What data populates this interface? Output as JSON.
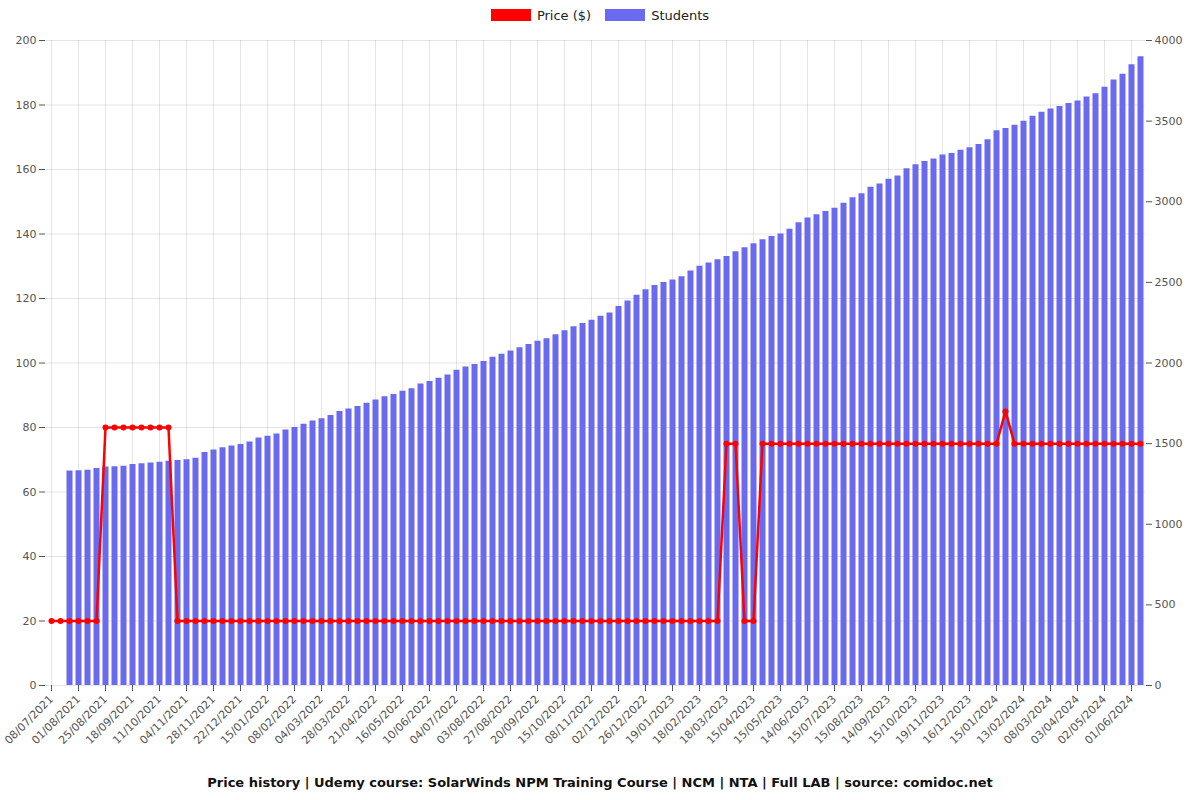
{
  "chart_data": {
    "type": "bar",
    "title": "Price history | Udemy course: SolarWinds NPM Training Course | NCM | NTA | Full LAB | source: comidoc.net",
    "categories": [
      "08/07/2021",
      null,
      null,
      "01/08/2021",
      null,
      null,
      "25/08/2021",
      null,
      null,
      "18/09/2021",
      null,
      null,
      "11/10/2021",
      null,
      null,
      "04/11/2021",
      null,
      null,
      "28/11/2021",
      null,
      null,
      "22/12/2021",
      null,
      null,
      "15/01/2022",
      null,
      null,
      "08/02/2022",
      null,
      null,
      "04/03/2022",
      null,
      null,
      "28/03/2022",
      null,
      null,
      "21/04/2022",
      null,
      null,
      "16/05/2022",
      null,
      null,
      "10/06/2022",
      null,
      null,
      "04/07/2022",
      null,
      null,
      "03/08/2022",
      null,
      null,
      "27/08/2022",
      null,
      null,
      "20/09/2022",
      null,
      null,
      "15/10/2022",
      null,
      null,
      "08/11/2022",
      null,
      null,
      "02/12/2022",
      null,
      null,
      "26/12/2022",
      null,
      null,
      "19/01/2023",
      null,
      null,
      "18/02/2023",
      null,
      null,
      "18/03/2023",
      null,
      null,
      "15/04/2023",
      null,
      null,
      "15/05/2023",
      null,
      null,
      "14/06/2023",
      null,
      null,
      "15/07/2023",
      null,
      null,
      "15/08/2023",
      null,
      null,
      "14/09/2023",
      null,
      null,
      "15/10/2023",
      null,
      null,
      "19/11/2023",
      null,
      null,
      "16/12/2023",
      null,
      null,
      "15/01/2024",
      null,
      null,
      "13/02/2024",
      null,
      null,
      "08/03/2024",
      null,
      null,
      "03/04/2024",
      null,
      null,
      "02/05/2024",
      null,
      null,
      "01/06/2024",
      null
    ],
    "series": [
      {
        "name": "Price ($)",
        "type": "line",
        "marker": "circle",
        "color": "#ff0000",
        "values": [
          20,
          20,
          20,
          20,
          20,
          20,
          80,
          80,
          80,
          80,
          80,
          80,
          80,
          80,
          20,
          20,
          20,
          20,
          20,
          20,
          20,
          20,
          20,
          20,
          20,
          20,
          20,
          20,
          20,
          20,
          20,
          20,
          20,
          20,
          20,
          20,
          20,
          20,
          20,
          20,
          20,
          20,
          20,
          20,
          20,
          20,
          20,
          20,
          20,
          20,
          20,
          20,
          20,
          20,
          20,
          20,
          20,
          20,
          20,
          20,
          20,
          20,
          20,
          20,
          20,
          20,
          20,
          20,
          20,
          20,
          20,
          20,
          20,
          20,
          20,
          75,
          75,
          20,
          20,
          75,
          75,
          75,
          75,
          75,
          75,
          75,
          75,
          75,
          75,
          75,
          75,
          75,
          75,
          75,
          75,
          75,
          75,
          75,
          75,
          75,
          75,
          75,
          75,
          75,
          75,
          75,
          85,
          75,
          75,
          75,
          75,
          75,
          75,
          75,
          75,
          75,
          75,
          75,
          75,
          75,
          75,
          75
        ]
      },
      {
        "name": "Students",
        "type": "bar",
        "axis": "y2",
        "color": "#6a6af0",
        "values": [
          0,
          0,
          1330,
          1332,
          1335,
          1345,
          1355,
          1357,
          1360,
          1370,
          1375,
          1380,
          1385,
          1390,
          1395,
          1400,
          1410,
          1445,
          1460,
          1475,
          1485,
          1495,
          1510,
          1535,
          1545,
          1560,
          1585,
          1600,
          1620,
          1640,
          1655,
          1675,
          1700,
          1715,
          1730,
          1750,
          1770,
          1790,
          1805,
          1825,
          1840,
          1870,
          1885,
          1905,
          1925,
          1955,
          1975,
          1990,
          2010,
          2035,
          2055,
          2075,
          2095,
          2115,
          2135,
          2150,
          2175,
          2200,
          2225,
          2245,
          2265,
          2290,
          2310,
          2350,
          2385,
          2420,
          2455,
          2480,
          2500,
          2515,
          2535,
          2570,
          2600,
          2620,
          2640,
          2660,
          2690,
          2715,
          2740,
          2765,
          2785,
          2800,
          2830,
          2870,
          2900,
          2920,
          2940,
          2960,
          2990,
          3025,
          3050,
          3090,
          3110,
          3140,
          3160,
          3205,
          3230,
          3250,
          3265,
          3290,
          3300,
          3320,
          3335,
          3355,
          3385,
          3440,
          3455,
          3475,
          3500,
          3530,
          3555,
          3575,
          3590,
          3610,
          3625,
          3650,
          3670,
          3710,
          3755,
          3790,
          3850,
          3900
        ]
      }
    ],
    "ylim": [
      0,
      200
    ],
    "yticks": [
      0,
      20,
      40,
      60,
      80,
      100,
      120,
      140,
      160,
      180,
      200
    ],
    "y2lim": [
      0,
      4000
    ],
    "y2ticks": [
      0,
      500,
      1000,
      1500,
      2000,
      2500,
      3000,
      3500,
      4000
    ],
    "grid": true,
    "legend": "top"
  }
}
